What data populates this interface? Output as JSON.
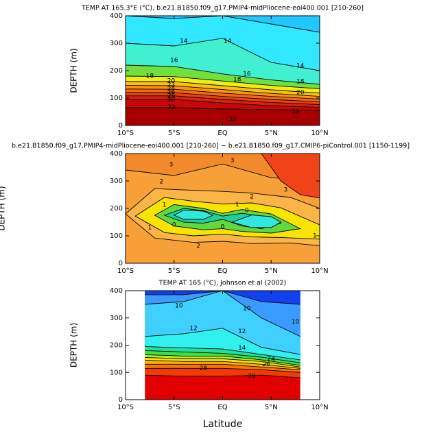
{
  "chart_data": [
    {
      "type": "contour",
      "title": "TEMP AT 165.3°E (°C), b.e21.B1850.f09_g17.PMIP4-midPliocene-eoi400.001 [210-260]",
      "ylabel": "DEPTH (m)",
      "xlim": [
        -10,
        10
      ],
      "ylim": [
        400,
        0
      ],
      "xticks": [
        {
          "value": -10,
          "label": "10°S"
        },
        {
          "value": -5,
          "label": "5°S"
        },
        {
          "value": 0,
          "label": "EQ"
        },
        {
          "value": 5,
          "label": "5°N"
        },
        {
          "value": 10,
          "label": "10°N"
        }
      ],
      "yticks": [
        0,
        100,
        200,
        300,
        400
      ],
      "top_color": "#a80000",
      "x": [
        -10,
        -5,
        0,
        5,
        10
      ],
      "isotherms": [
        {
          "level": 32,
          "color": "#c80808",
          "depths": [
            65,
            65,
            60,
            58,
            55
          ]
        },
        {
          "level": 30,
          "color": "#dc2010",
          "depths": [
            95,
            95,
            82,
            72,
            66
          ]
        },
        {
          "level": 28,
          "color": "#ea4010",
          "depths": [
            108,
            108,
            95,
            84,
            76
          ]
        },
        {
          "level": 26,
          "color": "#f46a10",
          "depths": [
            120,
            120,
            106,
            95,
            86
          ]
        },
        {
          "level": 24,
          "color": "#fa9410",
          "depths": [
            133,
            132,
            118,
            106,
            96
          ]
        },
        {
          "level": 22,
          "color": "#fec010",
          "depths": [
            146,
            145,
            131,
            117,
            106
          ]
        },
        {
          "level": 20,
          "color": "#f0ee10",
          "depths": [
            160,
            160,
            145,
            130,
            118
          ]
        },
        {
          "level": 18,
          "color": "#70e040",
          "depths": [
            180,
            178,
            162,
            146,
            134
          ]
        },
        {
          "level": 16,
          "color": "#40f0d0",
          "depths": [
            220,
            215,
            188,
            166,
            150
          ]
        },
        {
          "level": 14,
          "color": "#30e8ff",
          "depths": [
            300,
            290,
            318,
            230,
            200
          ]
        },
        {
          "level": 12,
          "color": "#20c8ff",
          "depths": [
            400,
            390,
            400,
            370,
            340
          ]
        }
      ],
      "contour_labels": [
        {
          "x": -5.3,
          "depth": 68,
          "value": 32
        },
        {
          "x": 1,
          "depth": 22,
          "value": 32
        },
        {
          "x": 7.5,
          "depth": 50,
          "value": 32
        },
        {
          "x": -5.3,
          "depth": 95,
          "value": 30
        },
        {
          "x": -5.3,
          "depth": 108,
          "value": 28
        },
        {
          "x": -5.3,
          "depth": 121,
          "value": 26
        },
        {
          "x": -5.3,
          "depth": 134,
          "value": 24
        },
        {
          "x": -5.3,
          "depth": 147,
          "value": 22
        },
        {
          "x": -5.3,
          "depth": 162,
          "value": 20
        },
        {
          "x": -7.5,
          "depth": 180,
          "value": 18
        },
        {
          "x": 1.5,
          "depth": 168,
          "value": 18
        },
        {
          "x": -5,
          "depth": 238,
          "value": 16
        },
        {
          "x": 2.5,
          "depth": 188,
          "value": 16
        },
        {
          "x": -4,
          "depth": 308,
          "value": 14
        },
        {
          "x": 0.5,
          "depth": 308,
          "value": 14
        },
        {
          "x": 8,
          "depth": 218,
          "value": 14
        },
        {
          "x": 8,
          "depth": 120,
          "value": 20
        },
        {
          "x": 8,
          "depth": 160,
          "value": 18
        }
      ]
    },
    {
      "type": "contour_regions",
      "title": "b.e21.B1850.f09_g17.PMIP4-midPliocene-eoi400.001 [210-260] − b.e21.B1850.f09_g17.CMIP6-piControl.001 [1150-1199]",
      "ylabel": "DEPTH (m)",
      "xlim": [
        -10,
        10
      ],
      "ylim": [
        400,
        0
      ],
      "xticks": [
        {
          "value": -10,
          "label": "10°S"
        },
        {
          "value": -5,
          "label": "5°S"
        },
        {
          "value": 0,
          "label": "EQ"
        },
        {
          "value": 5,
          "label": "5°N"
        },
        {
          "value": 10,
          "label": "10°N"
        }
      ],
      "yticks": [
        0,
        100,
        200,
        300,
        400
      ],
      "background": "#f8a038",
      "regions": [
        {
          "level": 3,
          "color": "#f28a2a",
          "x": [
            -10,
            -5,
            0,
            5,
            10
          ],
          "top": [
            340,
            320,
            362,
            312,
            300
          ],
          "bottom": [
            400,
            400,
            400,
            400,
            400
          ]
        },
        {
          "level": 4,
          "color": "#f04418",
          "x": [
            4,
            6,
            8,
            10
          ],
          "top": [
            400,
            300,
            250,
            238
          ],
          "bottom": [
            400,
            400,
            400,
            400
          ]
        },
        {
          "level": 2,
          "color": "#fbb446",
          "x": [
            -10,
            -7,
            -3,
            0,
            3,
            7,
            10
          ],
          "top": [
            180,
            92,
            76,
            80,
            72,
            74,
            64
          ],
          "bottom": [
            180,
            272,
            266,
            262,
            256,
            240,
            200
          ]
        },
        {
          "level": 1,
          "color": "#f8e400",
          "x": [
            -9,
            -6,
            -3,
            0,
            3,
            6,
            10
          ],
          "top": [
            172,
            112,
            100,
            106,
            96,
            94,
            88
          ],
          "bottom": [
            172,
            240,
            226,
            216,
            220,
            202,
            140
          ]
        },
        {
          "level": 0,
          "color": "#60d840",
          "x": [
            -7,
            -5,
            -2,
            0,
            2,
            5,
            8
          ],
          "top": [
            175,
            136,
            122,
            126,
            116,
            110,
            126
          ],
          "bottom": [
            175,
            214,
            200,
            182,
            196,
            180,
            126
          ]
        },
        {
          "level": -1,
          "color": "#20d09c",
          "x": [
            -6,
            -4,
            -2,
            0,
            2,
            4,
            6
          ],
          "top": [
            175,
            150,
            146,
            160,
            136,
            126,
            146
          ],
          "bottom": [
            175,
            200,
            192,
            172,
            182,
            172,
            146
          ]
        },
        {
          "level": -2,
          "color": "#30e8e0",
          "x": [
            -5,
            -4,
            -2,
            -1
          ],
          "top": [
            175,
            160,
            160,
            175
          ],
          "bottom": [
            175,
            194,
            190,
            175
          ]
        },
        {
          "level": -2,
          "color": "#30e8e0",
          "x": [
            1,
            3,
            5,
            6
          ],
          "top": [
            150,
            130,
            130,
            150
          ],
          "bottom": [
            150,
            176,
            170,
            150
          ]
        }
      ],
      "contour_labels": [
        {
          "x": -2.5,
          "depth": 63,
          "value": 2
        },
        {
          "x": -7.5,
          "depth": 130,
          "value": 1
        },
        {
          "x": -5,
          "depth": 140,
          "value": 0
        },
        {
          "x": -6,
          "depth": 213,
          "value": 1
        },
        {
          "x": -6.3,
          "depth": 298,
          "value": 2
        },
        {
          "x": -5.3,
          "depth": 360,
          "value": 3
        },
        {
          "x": 1,
          "depth": 375,
          "value": 3
        },
        {
          "x": 6.5,
          "depth": 268,
          "value": 3
        },
        {
          "x": 3,
          "depth": 243,
          "value": 2
        },
        {
          "x": 1.5,
          "depth": 214,
          "value": 1
        },
        {
          "x": 2.5,
          "depth": 192,
          "value": 0
        },
        {
          "x": 0,
          "depth": 132,
          "value": 0
        },
        {
          "x": 9.5,
          "depth": 100,
          "value": 1
        }
      ]
    },
    {
      "type": "contour",
      "title": "TEMP AT 165 (°C), Johnson et al (2002)",
      "ylabel": "DEPTH (m)",
      "xlabel": "Latitude",
      "xlim": [
        -10,
        10
      ],
      "ylim": [
        400,
        0
      ],
      "xticks": [
        {
          "value": -10,
          "label": "10°S"
        },
        {
          "value": -5,
          "label": "5°S"
        },
        {
          "value": 0,
          "label": "EQ"
        },
        {
          "value": 5,
          "label": "5°N"
        },
        {
          "value": 10,
          "label": "10°N"
        }
      ],
      "yticks": [
        0,
        100,
        200,
        300,
        400
      ],
      "top_color": "#e00000",
      "x": [
        -8,
        -4,
        0,
        4,
        8
      ],
      "isotherms": [
        {
          "level": 28,
          "color": "#f03c00",
          "depths": [
            90,
            86,
            86,
            90,
            80
          ]
        },
        {
          "level": 26,
          "color": "#f87400",
          "depths": [
            115,
            115,
            115,
            110,
            100
          ]
        },
        {
          "level": 24,
          "color": "#ffb000",
          "depths": [
            130,
            130,
            130,
            120,
            110
          ]
        },
        {
          "level": 22,
          "color": "#ffe000",
          "depths": [
            145,
            140,
            140,
            130,
            115
          ]
        },
        {
          "level": 20,
          "color": "#b0f020",
          "depths": [
            155,
            150,
            150,
            140,
            120
          ]
        },
        {
          "level": 18,
          "color": "#40e040",
          "depths": [
            165,
            160,
            160,
            146,
            126
          ]
        },
        {
          "level": 16,
          "color": "#20e0a0",
          "depths": [
            180,
            175,
            170,
            156,
            135
          ]
        },
        {
          "level": 14,
          "color": "#30f0f0",
          "depths": [
            195,
            190,
            186,
            166,
            146
          ]
        },
        {
          "level": 12,
          "color": "#40d0ff",
          "depths": [
            232,
            242,
            262,
            192,
            166
          ]
        },
        {
          "level": 10,
          "color": "#3a9cff",
          "depths": [
            350,
            360,
            400,
            300,
            232
          ]
        },
        {
          "level": 8,
          "color": "#1040f0",
          "depths": [
            385,
            385,
            400,
            360,
            350
          ]
        }
      ],
      "contour_labels": [
        {
          "x": -2,
          "depth": 115,
          "value": 28
        },
        {
          "x": 3,
          "depth": 86,
          "value": 28
        },
        {
          "x": 4.5,
          "depth": 130,
          "value": 26
        },
        {
          "x": 5,
          "depth": 148,
          "value": 24
        },
        {
          "x": -3,
          "depth": 262,
          "value": 12
        },
        {
          "x": 2,
          "depth": 250,
          "value": 12
        },
        {
          "x": -4.5,
          "depth": 345,
          "value": 10
        },
        {
          "x": 2.5,
          "depth": 335,
          "value": 10
        },
        {
          "x": 7.5,
          "depth": 285,
          "value": 10
        },
        {
          "x": 2,
          "depth": 190,
          "value": 14
        }
      ]
    }
  ]
}
